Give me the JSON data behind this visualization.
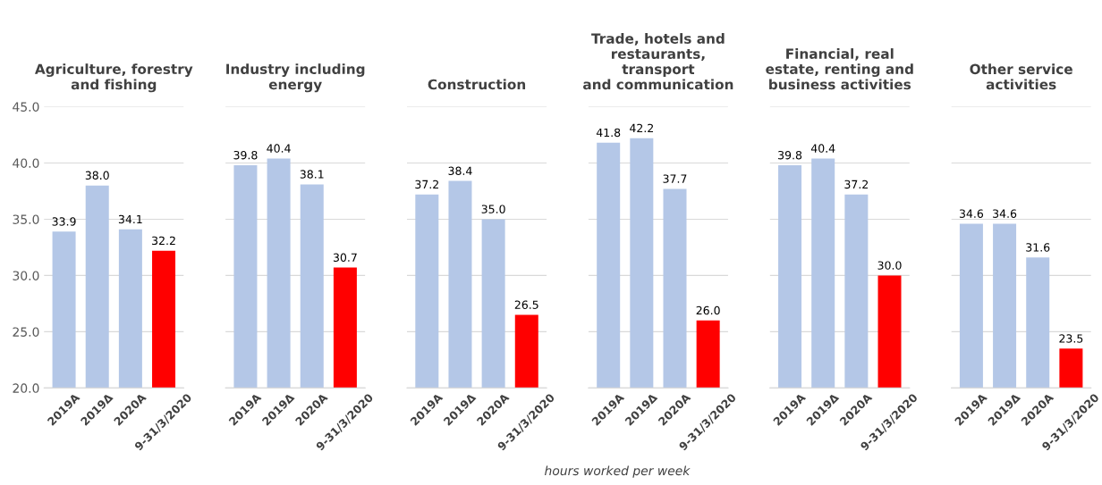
{
  "chart_data": [
    {
      "type": "bar",
      "title": "Agriculture, forestry\nand fishing",
      "categories": [
        "2019A",
        "2019Δ",
        "2020A",
        "9-31/3/2020"
      ],
      "values": [
        33.9,
        38.0,
        34.1,
        32.2
      ],
      "value_labels": [
        "33.9",
        "38.0",
        "34.1",
        "32.2"
      ],
      "colors": [
        "#b4c7e7",
        "#b4c7e7",
        "#b4c7e7",
        "#ff0000"
      ],
      "ylim": [
        20,
        45
      ],
      "yticks": [
        {
          "value": 20,
          "label": "20.0"
        },
        {
          "value": 25,
          "label": "25.0"
        },
        {
          "value": 30,
          "label": "30.0"
        },
        {
          "value": 35,
          "label": "35.0"
        },
        {
          "value": 40,
          "label": "40.0"
        },
        {
          "value": 45,
          "label": "45.0"
        }
      ],
      "grid": "y"
    },
    {
      "type": "bar",
      "title": "Industry including\nenergy",
      "categories": [
        "2019A",
        "2019Δ",
        "2020A",
        "9-31/3/2020"
      ],
      "values": [
        39.8,
        40.4,
        38.1,
        30.7
      ],
      "value_labels": [
        "39.8",
        "40.4",
        "38.1",
        "30.7"
      ],
      "colors": [
        "#b4c7e7",
        "#b4c7e7",
        "#b4c7e7",
        "#ff0000"
      ],
      "ylim": [
        20,
        45
      ],
      "yticks": [
        20,
        25,
        30,
        35,
        40,
        45
      ],
      "grid": "y",
      "tick_labels": "x"
    },
    {
      "type": "bar",
      "title": "Construction",
      "categories": [
        "2019A",
        "2019Δ",
        "2020A",
        "9-31/3/2020"
      ],
      "values": [
        37.2,
        38.4,
        35.0,
        26.5
      ],
      "value_labels": [
        "37.2",
        "38.4",
        "35.0",
        "26.5"
      ],
      "colors": [
        "#b4c7e7",
        "#b4c7e7",
        "#b4c7e7",
        "#ff0000"
      ],
      "ylim": [
        20,
        45
      ],
      "yticks": [
        20,
        25,
        30,
        35,
        40,
        45
      ],
      "grid": "y",
      "tick_labels": "x",
      "annotations": [
        "hours worked per week"
      ]
    },
    {
      "type": "bar",
      "title": "Trade, hotels and\nrestaurants,\ntransport\nand communication",
      "categories": [
        "2019A",
        "2019Δ",
        "2020A",
        "9-31/3/2020"
      ],
      "values": [
        41.8,
        42.2,
        37.7,
        26.0
      ],
      "value_labels": [
        "41.8",
        "42.2",
        "37.7",
        "26.0"
      ],
      "colors": [
        "#b4c7e7",
        "#b4c7e7",
        "#b4c7e7",
        "#ff0000"
      ],
      "ylim": [
        20,
        45
      ],
      "yticks": [
        20,
        25,
        30,
        35,
        40,
        45
      ],
      "grid": "y",
      "tick_labels": "x"
    },
    {
      "type": "bar",
      "title": "Financial, real\nestate, renting and\nbusiness activities",
      "categories": [
        "2019A",
        "2019Δ",
        "2020A",
        "9-31/3/2020"
      ],
      "values": [
        39.8,
        40.4,
        37.2,
        30.0
      ],
      "value_labels": [
        "39.8",
        "40.4",
        "37.2",
        "30.0"
      ],
      "colors": [
        "#b4c7e7",
        "#b4c7e7",
        "#b4c7e7",
        "#ff0000"
      ],
      "ylim": [
        20,
        45
      ],
      "yticks": [
        20,
        25,
        30,
        35,
        40,
        45
      ],
      "grid": "y",
      "tick_labels": "x"
    },
    {
      "type": "bar",
      "title": "Other service\nactivities",
      "categories": [
        "2019A",
        "2019Δ",
        "2020A",
        "9-31/3/2020"
      ],
      "values": [
        34.6,
        34.6,
        31.6,
        23.5
      ],
      "value_labels": [
        "34.6",
        "34.6",
        "31.6",
        "23.5"
      ],
      "colors": [
        "#b4c7e7",
        "#b4c7e7",
        "#b4c7e7",
        "#ff0000"
      ],
      "ylim": [
        20,
        45
      ],
      "yticks": [
        20,
        25,
        30,
        35,
        40,
        45
      ],
      "grid": "y",
      "tick_labels": "x"
    }
  ]
}
